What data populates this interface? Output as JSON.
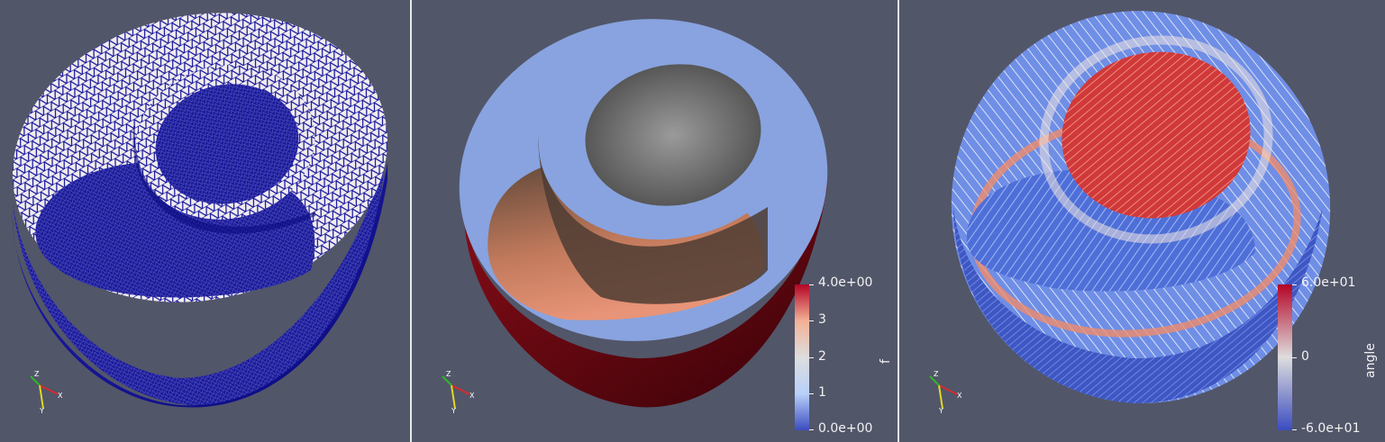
{
  "colorbar_f": {
    "title": "f",
    "labels": [
      "4.0e+00",
      "3",
      "2",
      "1",
      "0.0e+00"
    ],
    "colors": [
      "#3b4cc0",
      "#b8d0f9",
      "#dddddd",
      "#f2b196",
      "#b40426"
    ]
  },
  "colorbar_angle": {
    "title": "angle",
    "labels": [
      "6.0e+01",
      "0",
      "-6.0e+01"
    ],
    "colors": [
      "#3b4cc0",
      "#dddddd",
      "#b40426"
    ]
  },
  "axes_triad": {
    "x": "X",
    "y": "Y",
    "z": "Z"
  },
  "colors": {
    "background": "#525669",
    "mesh_edge": "#0c0c96",
    "mesh_face": "#f0ecee",
    "cut_surface": "#88a3df",
    "outer_dark": "#5c0610"
  }
}
